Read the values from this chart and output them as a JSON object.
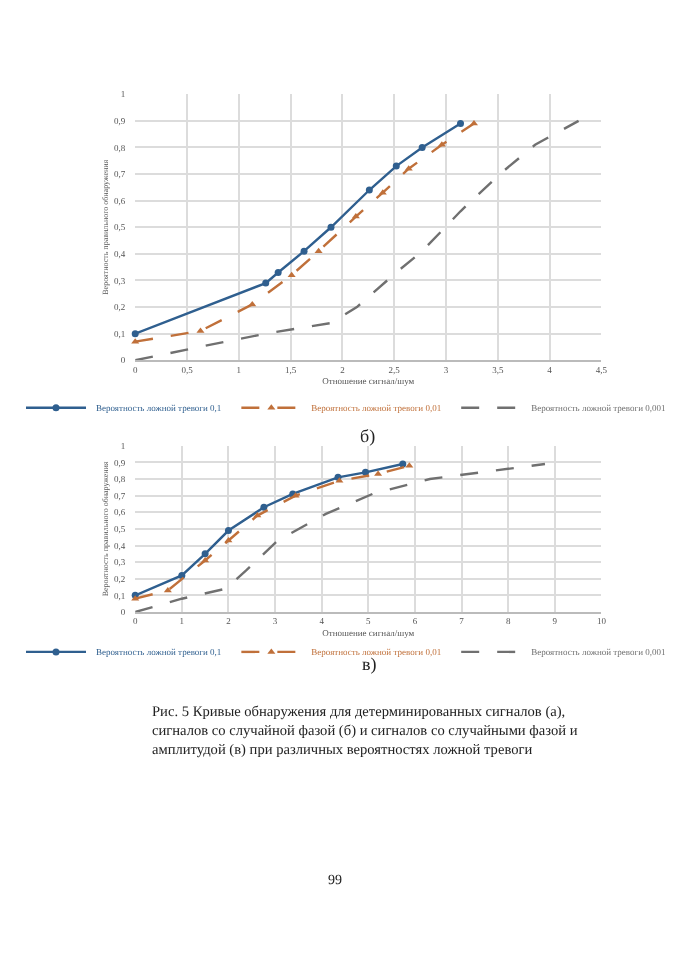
{
  "chart_data": [
    {
      "type": "line",
      "xlabel": "Отношение сигнал/шум",
      "ylabel": "Вероятность правильного обнаружения",
      "annotations": [
        "б)"
      ],
      "xlim": [
        0,
        4.5
      ],
      "xticks": [
        0,
        {
          "value": 0.5,
          "label": "0,5"
        },
        1,
        {
          "value": 1.5,
          "label": "1,5"
        },
        2,
        {
          "value": 2.5,
          "label": "2,5"
        },
        3,
        {
          "value": 3.5,
          "label": "3,5"
        },
        4,
        {
          "value": 4.5,
          "label": "4,5"
        }
      ],
      "ylim": [
        0,
        1
      ],
      "yticks": [
        0,
        {
          "value": 0.1,
          "label": "0,1"
        },
        {
          "value": 0.2,
          "label": "0,2"
        },
        {
          "value": 0.3,
          "label": "0,3"
        },
        {
          "value": 0.4,
          "label": "0,4"
        },
        {
          "value": 0.5,
          "label": "0,5"
        },
        {
          "value": 0.6,
          "label": "0,6"
        },
        {
          "value": 0.7,
          "label": "0,7"
        },
        {
          "value": 0.8,
          "label": "0,8"
        },
        {
          "value": 0.9,
          "label": "0,9"
        },
        1
      ],
      "grid": true,
      "legend": "bottom",
      "series": [
        {
          "name": "Вероятность ложной тревоги 0,1",
          "color": "#2f5f8f",
          "marker": "circle",
          "line_style": "solid",
          "x": [
            0,
            1.26,
            1.38,
            1.63,
            1.89,
            2.26,
            2.52,
            2.77,
            3.14
          ],
          "values": [
            0.1,
            0.29,
            0.33,
            0.41,
            0.5,
            0.64,
            0.73,
            0.8,
            0.89
          ]
        },
        {
          "name": "Вероятность ложной тревоги 0,01",
          "color": "#c0703a",
          "marker": "triangle",
          "line_style": "dashed",
          "x": [
            0,
            0.63,
            1.13,
            1.51,
            1.77,
            2.13,
            2.39,
            2.64,
            2.96,
            3.27
          ],
          "values": [
            0.07,
            0.11,
            0.21,
            0.32,
            0.41,
            0.54,
            0.63,
            0.72,
            0.81,
            0.89
          ]
        },
        {
          "name": "Вероятность ложной тревоги 0,001",
          "color": "#707070",
          "marker": "none",
          "line_style": "dashed",
          "x": [
            0,
            0.62,
            1.26,
            1.89,
            2.14,
            2.52,
            2.77,
            3.14,
            3.52,
            3.86,
            4.28
          ],
          "values": [
            0,
            0.05,
            0.1,
            0.14,
            0.2,
            0.33,
            0.41,
            0.56,
            0.7,
            0.81,
            0.9
          ]
        }
      ]
    },
    {
      "type": "line",
      "xlabel": "Отношение сигнал/шум",
      "ylabel": "Вероятность правильного обнаружения",
      "annotations": [
        "в)",
        "Рис. 5 Кривые обнаружения для детерминированных сигналов (а), сигналов со случайной фазой (б) и сигналов со случайными фазой и амплитудой (в) при различных вероятностях ложной тревоги",
        "99"
      ],
      "xlim": [
        0,
        10
      ],
      "xticks": [
        0,
        1,
        2,
        3,
        4,
        5,
        6,
        7,
        8,
        9,
        10
      ],
      "ylim": [
        0,
        1
      ],
      "yticks": [
        0,
        {
          "value": 0.1,
          "label": "0,1"
        },
        {
          "value": 0.2,
          "label": "0,2"
        },
        {
          "value": 0.3,
          "label": "0,3"
        },
        {
          "value": 0.4,
          "label": "0,4"
        },
        {
          "value": 0.5,
          "label": "0,5"
        },
        {
          "value": 0.6,
          "label": "0,6"
        },
        {
          "value": 0.7,
          "label": "0,7"
        },
        {
          "value": 0.8,
          "label": "0,8"
        },
        {
          "value": 0.9,
          "label": "0,9"
        },
        1
      ],
      "grid": true,
      "legend": "bottom",
      "series": [
        {
          "name": "Вероятность ложной тревоги 0,1",
          "color": "#2f5f8f",
          "marker": "circle",
          "line_style": "solid",
          "x": [
            0,
            1,
            1.5,
            2,
            2.76,
            3.38,
            4.35,
            4.94,
            5.74
          ],
          "values": [
            0.1,
            0.22,
            0.35,
            0.49,
            0.63,
            0.71,
            0.81,
            0.84,
            0.89
          ]
        },
        {
          "name": "Вероятность ложной тревоги 0,01",
          "color": "#c0703a",
          "marker": "triangle",
          "line_style": "dashed",
          "x": [
            0,
            0.7,
            1.5,
            2,
            2.62,
            3.44,
            4.38,
            5.21,
            5.88
          ],
          "values": [
            0.08,
            0.13,
            0.31,
            0.43,
            0.58,
            0.7,
            0.79,
            0.83,
            0.88
          ]
        },
        {
          "name": "Вероятность ложной тревоги 0,001",
          "color": "#707070",
          "marker": "none",
          "line_style": "dashed",
          "x": [
            0,
            1,
            1.94,
            2.38,
            3.06,
            4.09,
            5.09,
            6.32,
            8.79
          ],
          "values": [
            0,
            0.08,
            0.14,
            0.25,
            0.43,
            0.59,
            0.71,
            0.8,
            0.89
          ]
        }
      ]
    }
  ]
}
